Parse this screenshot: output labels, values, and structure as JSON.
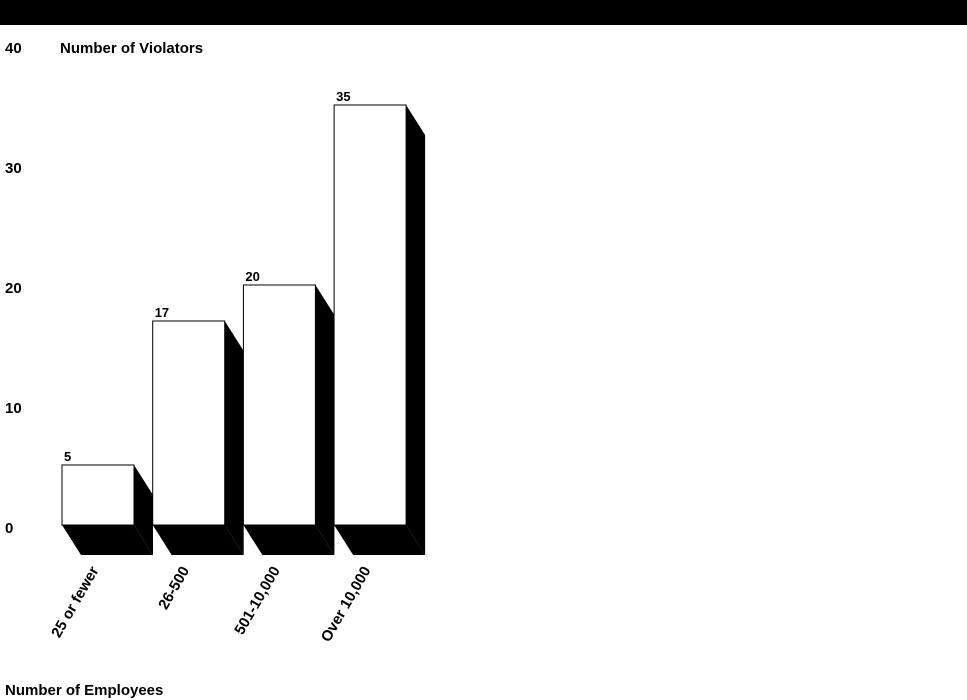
{
  "chart_data": {
    "type": "bar",
    "title": "",
    "ylabel": "Number of Violators",
    "xlabel": "Number of Employees",
    "categories": [
      "25 or fewer",
      "26-500",
      "501-10,000",
      "Over 10,000"
    ],
    "values": [
      5,
      17,
      20,
      35
    ],
    "ylim": [
      0,
      40
    ],
    "yticks": [
      0,
      10,
      20,
      30,
      40
    ],
    "data_labels": [
      "5",
      "17",
      "20",
      "35"
    ],
    "grid": false,
    "legend": "none",
    "style": "3d-shadow",
    "colors": {
      "bar_face": "#ffffff",
      "bar_shadow": "#000000",
      "top_band": "#000000"
    }
  }
}
